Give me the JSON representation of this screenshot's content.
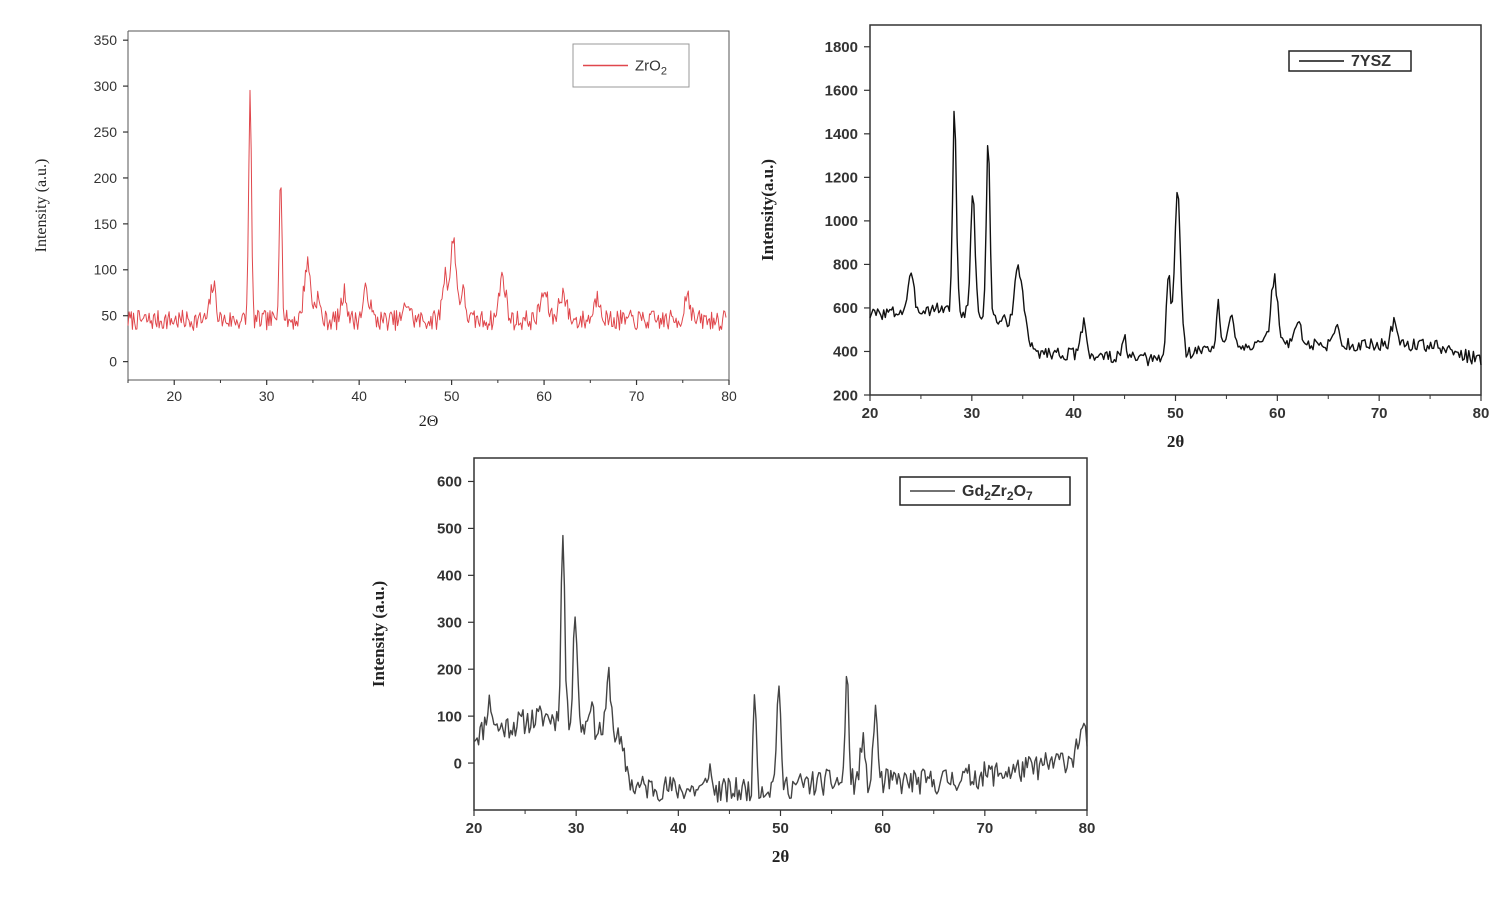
{
  "chart_data": [
    {
      "id": "zro2",
      "type": "line",
      "title": "",
      "xlabel": "2Θ",
      "ylabel": "Intensity (a.u.)",
      "xlim": [
        15,
        80
      ],
      "ylim": [
        -20,
        360
      ],
      "xticks": [
        20,
        30,
        40,
        50,
        60,
        70,
        80
      ],
      "yticks": [
        0,
        50,
        100,
        150,
        200,
        250,
        300,
        350
      ],
      "legend": {
        "main": "ZrO",
        "sub": "2",
        "placement": "top-right"
      },
      "color": "#e0474c",
      "baseline": 45,
      "noise": 11,
      "seed": 7,
      "step": 0.12,
      "peaks": [
        [
          24.2,
          38,
          0.3
        ],
        [
          28.2,
          245,
          0.15
        ],
        [
          31.5,
          165,
          0.15
        ],
        [
          34.4,
          62,
          0.35
        ],
        [
          35.5,
          25,
          0.25
        ],
        [
          38.4,
          30,
          0.3
        ],
        [
          40.8,
          32,
          0.35
        ],
        [
          45.2,
          20,
          0.3
        ],
        [
          49.3,
          50,
          0.3
        ],
        [
          50.2,
          88,
          0.3
        ],
        [
          51.2,
          30,
          0.3
        ],
        [
          55.5,
          48,
          0.35
        ],
        [
          60.0,
          30,
          0.4
        ],
        [
          62.0,
          30,
          0.4
        ],
        [
          65.8,
          25,
          0.4
        ],
        [
          75.5,
          30,
          0.3
        ]
      ],
      "xrange": [
        15,
        79.7
      ]
    },
    {
      "id": "ysz",
      "type": "line",
      "title": "",
      "xlabel": "2θ",
      "ylabel": "Intensity(a.u.)",
      "xlim": [
        20,
        80
      ],
      "ylim": [
        200,
        1900
      ],
      "xticks": [
        20,
        30,
        40,
        50,
        60,
        70,
        80
      ],
      "yticks": [
        200,
        400,
        600,
        800,
        1000,
        1200,
        1400,
        1600,
        1800
      ],
      "legend": {
        "main": "7YSZ",
        "sub": "",
        "placement": "top-right"
      },
      "color": "#111111",
      "seed": 3,
      "noise": 30,
      "step": 0.15,
      "baseline_pts": [
        [
          20,
          570
        ],
        [
          27,
          600
        ],
        [
          35,
          520
        ],
        [
          36,
          400
        ],
        [
          48,
          360
        ],
        [
          55,
          430
        ],
        [
          65,
          430
        ],
        [
          75,
          430
        ],
        [
          80,
          360
        ]
      ],
      "peaks": [
        [
          24.0,
          150,
          0.3
        ],
        [
          28.3,
          930,
          0.18
        ],
        [
          30.1,
          560,
          0.22
        ],
        [
          31.6,
          800,
          0.18
        ],
        [
          34.6,
          250,
          0.4
        ],
        [
          41.0,
          160,
          0.25
        ],
        [
          45.0,
          90,
          0.2
        ],
        [
          49.3,
          380,
          0.2
        ],
        [
          50.2,
          750,
          0.3
        ],
        [
          54.2,
          200,
          0.15
        ],
        [
          55.5,
          160,
          0.25
        ],
        [
          59.7,
          300,
          0.35
        ],
        [
          62.0,
          120,
          0.3
        ],
        [
          65.8,
          100,
          0.25
        ],
        [
          71.5,
          110,
          0.3
        ]
      ],
      "xrange": [
        20,
        80
      ]
    },
    {
      "id": "gzo",
      "type": "line",
      "title": "",
      "xlabel": "2θ",
      "ylabel": "Intensity (a.u.)",
      "xlim": [
        20,
        80
      ],
      "ylim": [
        -100,
        650
      ],
      "xticks": [
        20,
        30,
        40,
        50,
        60,
        70,
        80
      ],
      "yticks": [
        0,
        100,
        200,
        300,
        400,
        500,
        600
      ],
      "legend": {
        "main": "Gd",
        "sub": "2",
        "main2": "Zr",
        "sub2": "2",
        "main3": "O",
        "sub3": "7",
        "placement": "top-right"
      },
      "color": "#444444",
      "seed": 11,
      "noise": 28,
      "step": 0.15,
      "baseline_pts": [
        [
          20,
          60
        ],
        [
          27,
          100
        ],
        [
          34,
          60
        ],
        [
          35.5,
          -50
        ],
        [
          45,
          -60
        ],
        [
          55,
          -40
        ],
        [
          65,
          -40
        ],
        [
          75,
          -10
        ],
        [
          80,
          20
        ]
      ],
      "peaks": [
        [
          21.5,
          60,
          0.3
        ],
        [
          28.7,
          400,
          0.18
        ],
        [
          29.9,
          240,
          0.2
        ],
        [
          31.4,
          60,
          0.2
        ],
        [
          33.2,
          120,
          0.22
        ],
        [
          43.0,
          50,
          0.2
        ],
        [
          47.5,
          210,
          0.15
        ],
        [
          49.8,
          210,
          0.2
        ],
        [
          56.5,
          250,
          0.15
        ],
        [
          58.0,
          90,
          0.2
        ],
        [
          59.3,
          170,
          0.18
        ],
        [
          79.5,
          50,
          0.4
        ]
      ],
      "xrange": [
        20,
        80
      ]
    }
  ]
}
